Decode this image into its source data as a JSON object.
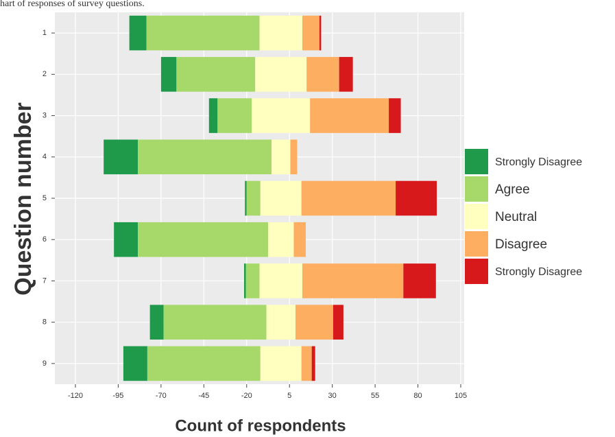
{
  "chart_data": {
    "type": "diverging_stacked_bar",
    "title": "hart of responses of survey questions.",
    "x_label": "Count of respondents",
    "y_label": "Question number",
    "categories": [
      "1",
      "2",
      "3",
      "4",
      "5",
      "6",
      "7",
      "8",
      "9"
    ],
    "series": [
      {
        "name": "Strongly Disagree",
        "color": "#1f9a4a",
        "values": [
          10,
          9,
          5,
          20,
          1,
          14,
          1,
          8,
          14
        ]
      },
      {
        "name": "Agree",
        "color": "#a6d96a",
        "values": [
          66,
          46,
          20,
          78,
          8,
          76,
          8,
          60,
          66
        ]
      },
      {
        "name": "Neutral",
        "color": "#ffffbf",
        "values": [
          25,
          30,
          34,
          11,
          24,
          15,
          25,
          17,
          24
        ]
      },
      {
        "name": "Disagree",
        "color": "#fdae61",
        "values": [
          10,
          19,
          46,
          4,
          55,
          7,
          59,
          22,
          6
        ]
      },
      {
        "name": "Strongly Disagree",
        "color": "#d7191c",
        "values": [
          1,
          8,
          7,
          0,
          24,
          0,
          19,
          6,
          2
        ]
      }
    ],
    "xlim": [
      -132,
      107
    ],
    "xticks": [
      -120,
      -95,
      -70,
      -45,
      -20,
      5,
      30,
      55,
      80,
      105
    ],
    "grid": true,
    "legend": "right"
  }
}
